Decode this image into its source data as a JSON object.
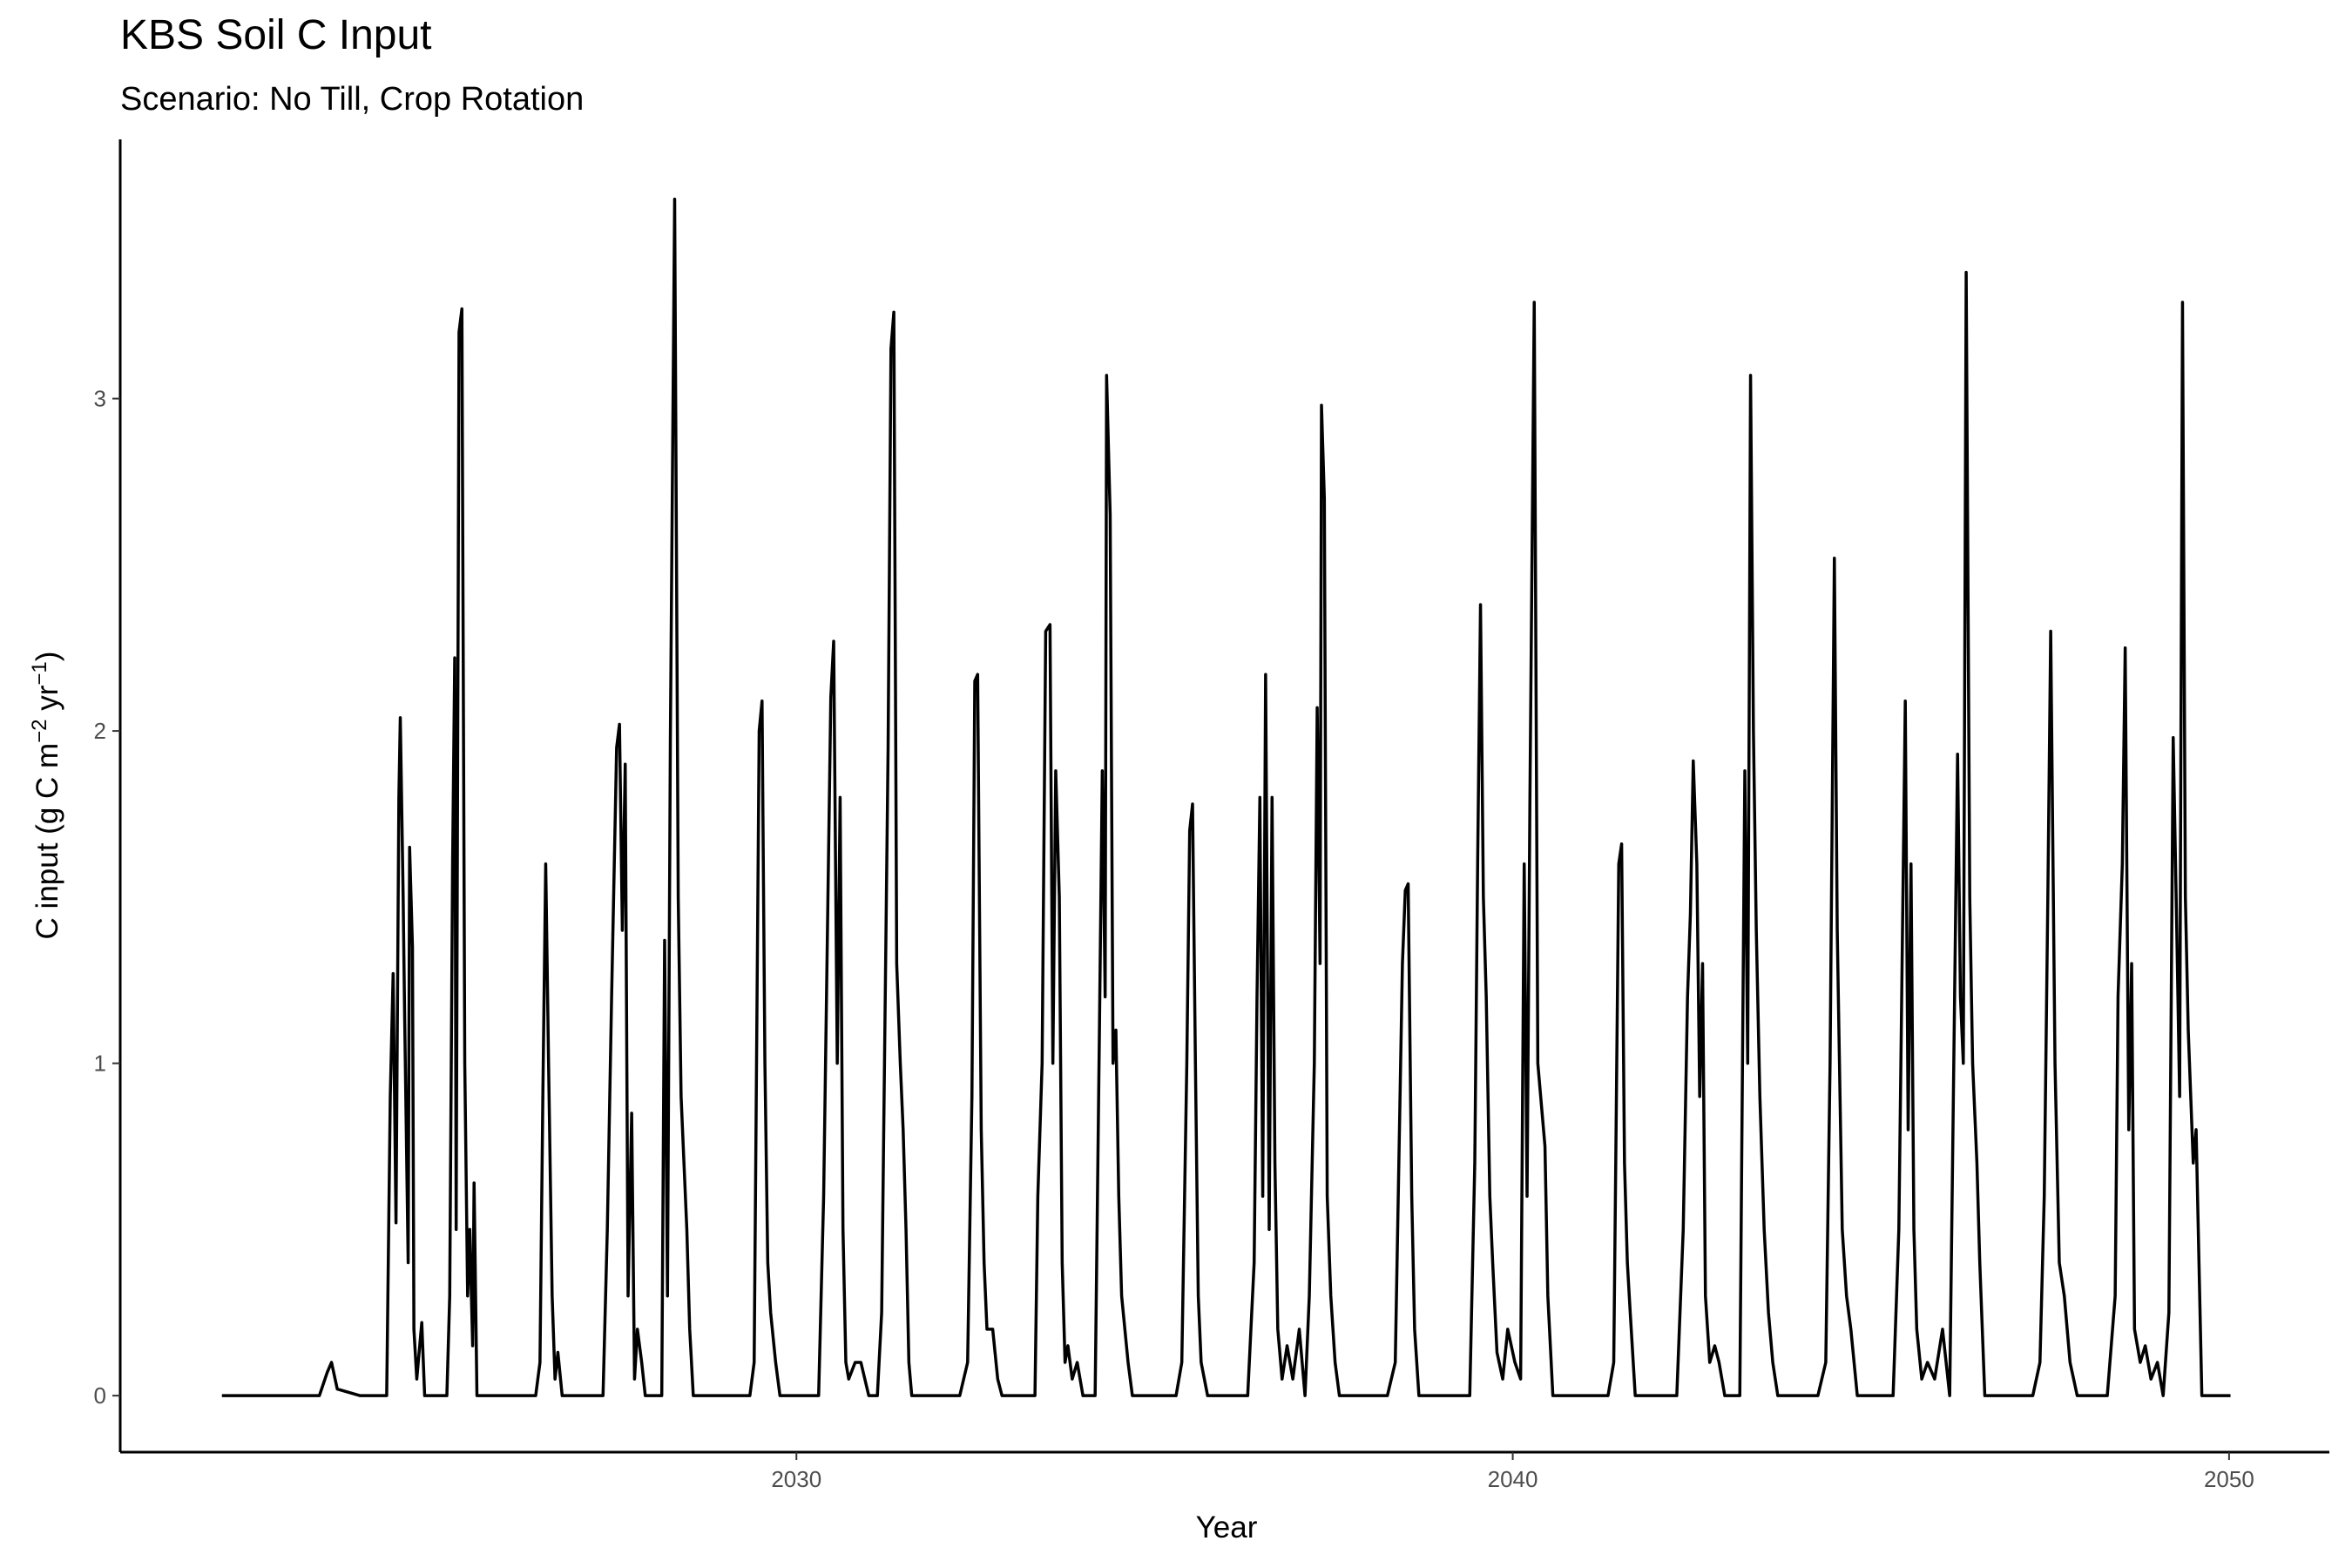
{
  "chart_data": {
    "type": "line",
    "title": "KBS Soil C Input",
    "subtitle": "Scenario: No Till, Crop Rotation",
    "x_label": "Year",
    "y_label": [
      "C input (g C m",
      "−2",
      " yr",
      "−1",
      ")"
    ],
    "color": "#000000",
    "grid": false,
    "xlim": [
      2020.56,
      2051.4
    ],
    "ylim": [
      -0.17,
      3.78
    ],
    "xticks": [
      2030,
      2040,
      2050
    ],
    "yticks": [
      0,
      1,
      2,
      3
    ],
    "x": [
      2021.98,
      2023.34,
      2023.45,
      2023.51,
      2023.59,
      2023.91,
      2024.28,
      2024.33,
      2024.37,
      2024.41,
      2024.45,
      2024.47,
      2024.51,
      2024.53,
      2024.58,
      2024.6,
      2024.64,
      2024.66,
      2024.7,
      2024.77,
      2024.81,
      2025.12,
      2025.16,
      2025.2,
      2025.23,
      2025.25,
      2025.29,
      2025.33,
      2025.37,
      2025.41,
      2025.44,
      2025.48,
      2025.5,
      2025.54,
      2026.36,
      2026.42,
      2026.46,
      2026.5,
      2026.54,
      2026.59,
      2026.63,
      2026.67,
      2026.73,
      2027.3,
      2027.36,
      2027.42,
      2027.49,
      2027.53,
      2027.57,
      2027.61,
      2027.65,
      2027.7,
      2027.74,
      2027.78,
      2027.84,
      2027.89,
      2028.12,
      2028.16,
      2028.2,
      2028.24,
      2028.3,
      2028.35,
      2028.39,
      2028.43,
      2028.47,
      2028.51,
      2028.56,
      2029.35,
      2029.41,
      2029.48,
      2029.52,
      2029.56,
      2029.6,
      2029.64,
      2029.71,
      2029.77,
      2030.31,
      2030.38,
      2030.44,
      2030.48,
      2030.52,
      2030.57,
      2030.61,
      2030.65,
      2030.69,
      2030.73,
      2030.82,
      2030.9,
      2031.01,
      2031.13,
      2031.19,
      2031.24,
      2031.28,
      2031.32,
      2031.36,
      2031.4,
      2031.45,
      2031.49,
      2031.53,
      2031.57,
      2031.61,
      2032.28,
      2032.39,
      2032.45,
      2032.49,
      2032.53,
      2032.58,
      2032.62,
      2032.66,
      2032.74,
      2032.81,
      2032.87,
      2033.33,
      2033.37,
      2033.43,
      2033.48,
      2033.54,
      2033.58,
      2033.62,
      2033.67,
      2033.71,
      2033.75,
      2033.79,
      2033.85,
      2033.92,
      2034.0,
      2034.17,
      2034.23,
      2034.27,
      2034.31,
      2034.33,
      2034.38,
      2034.42,
      2034.46,
      2034.5,
      2034.54,
      2034.63,
      2034.69,
      2035.3,
      2035.38,
      2035.45,
      2035.49,
      2035.53,
      2035.57,
      2035.61,
      2035.65,
      2035.74,
      2036.3,
      2036.39,
      2036.43,
      2036.47,
      2036.51,
      2036.55,
      2036.6,
      2036.64,
      2036.68,
      2036.72,
      2036.78,
      2036.85,
      2036.93,
      2037.02,
      2037.1,
      2037.16,
      2037.23,
      2037.27,
      2037.31,
      2037.33,
      2037.37,
      2037.41,
      2037.46,
      2037.52,
      2037.58,
      2038.25,
      2038.36,
      2038.46,
      2038.5,
      2038.54,
      2038.59,
      2038.63,
      2038.69,
      2039.4,
      2039.47,
      2039.51,
      2039.55,
      2039.59,
      2039.63,
      2039.68,
      2039.72,
      2039.78,
      2039.86,
      2039.93,
      2040.03,
      2040.11,
      2040.16,
      2040.2,
      2040.24,
      2040.3,
      2040.35,
      2040.39,
      2040.45,
      2040.49,
      2040.56,
      2041.33,
      2041.41,
      2041.48,
      2041.52,
      2041.56,
      2041.6,
      2041.64,
      2041.71,
      2042.29,
      2042.38,
      2042.44,
      2042.48,
      2042.52,
      2042.57,
      2042.61,
      2042.65,
      2042.69,
      2042.75,
      2042.82,
      2042.88,
      2042.96,
      2043.17,
      2043.24,
      2043.28,
      2043.32,
      2043.36,
      2043.4,
      2043.45,
      2043.51,
      2043.57,
      2043.63,
      2043.7,
      2044.26,
      2044.37,
      2044.43,
      2044.49,
      2044.53,
      2044.6,
      2044.66,
      2044.72,
      2044.81,
      2045.31,
      2045.39,
      2045.43,
      2045.48,
      2045.52,
      2045.56,
      2045.6,
      2045.64,
      2045.71,
      2045.79,
      2045.89,
      2046.0,
      2046.1,
      2046.21,
      2046.25,
      2046.29,
      2046.33,
      2046.38,
      2046.42,
      2046.48,
      2046.52,
      2046.59,
      2047.26,
      2047.36,
      2047.42,
      2047.47,
      2047.51,
      2047.57,
      2047.63,
      2047.7,
      2047.78,
      2047.88,
      2048.3,
      2048.41,
      2048.45,
      2048.51,
      2048.55,
      2048.6,
      2048.64,
      2048.68,
      2048.76,
      2048.83,
      2048.91,
      2049.0,
      2049.08,
      2049.16,
      2049.22,
      2049.27,
      2049.31,
      2049.35,
      2049.39,
      2049.43,
      2049.5,
      2049.54,
      2049.58,
      2049.62,
      2050.02
    ],
    "values": [
      0,
      0,
      0.07,
      0.1,
      0.02,
      0,
      0,
      0.9,
      1.27,
      0.52,
      1.8,
      2.04,
      1.5,
      1.15,
      0.4,
      1.65,
      1.35,
      0.2,
      0.05,
      0.22,
      0,
      0,
      0.3,
      1.6,
      2.22,
      0.5,
      3.2,
      3.27,
      1.0,
      0.3,
      0.5,
      0.15,
      0.64,
      0,
      0,
      0.1,
      0.9,
      1.6,
      1.0,
      0.3,
      0.05,
      0.13,
      0,
      0,
      0.5,
      1.2,
      1.95,
      2.02,
      1.4,
      1.9,
      0.3,
      0.85,
      0.05,
      0.2,
      0.1,
      0,
      0,
      1.37,
      0.3,
      1.97,
      3.6,
      1.5,
      0.9,
      0.7,
      0.5,
      0.2,
      0,
      0,
      0.1,
      2.0,
      2.09,
      1.0,
      0.4,
      0.25,
      0.1,
      0,
      0,
      0.6,
      1.5,
      2.1,
      2.27,
      1.0,
      1.8,
      0.5,
      0.1,
      0.05,
      0.1,
      0.1,
      0,
      0,
      0.25,
      1.2,
      1.95,
      3.15,
      3.26,
      1.3,
      1.0,
      0.8,
      0.5,
      0.1,
      0,
      0,
      0.1,
      0.9,
      2.15,
      2.17,
      0.8,
      0.4,
      0.2,
      0.2,
      0.05,
      0,
      0,
      0.6,
      1.0,
      2.3,
      2.32,
      1.0,
      1.88,
      1.5,
      0.4,
      0.1,
      0.15,
      0.05,
      0.1,
      0,
      0,
      1.1,
      1.88,
      1.2,
      3.07,
      2.65,
      1.0,
      1.1,
      0.6,
      0.3,
      0.1,
      0,
      0,
      0.1,
      1.0,
      1.7,
      1.78,
      1.0,
      0.3,
      0.1,
      0,
      0,
      0.4,
      1.2,
      1.8,
      0.6,
      2.17,
      0.5,
      1.8,
      0.7,
      0.2,
      0.05,
      0.15,
      0.05,
      0.2,
      0,
      0.3,
      1.0,
      2.07,
      1.3,
      2.98,
      2.7,
      0.6,
      0.3,
      0.1,
      0,
      0,
      0.1,
      1.3,
      1.52,
      1.54,
      0.6,
      0.2,
      0,
      0,
      0.7,
      1.6,
      2.38,
      1.5,
      1.2,
      0.6,
      0.4,
      0.13,
      0.05,
      0.2,
      0.1,
      0.05,
      1.6,
      0.6,
      1.8,
      3.29,
      1.0,
      0.9,
      0.75,
      0.3,
      0,
      0,
      0.1,
      1.6,
      1.66,
      0.7,
      0.4,
      0.25,
      0,
      0,
      0.5,
      1.2,
      1.45,
      1.91,
      1.6,
      0.9,
      1.3,
      0.3,
      0.1,
      0.15,
      0.1,
      0,
      0,
      1.88,
      1.0,
      3.07,
      2.0,
      1.4,
      0.9,
      0.5,
      0.25,
      0.1,
      0,
      0,
      0.1,
      1.0,
      2.52,
      1.4,
      0.5,
      0.3,
      0.2,
      0,
      0,
      0.5,
      1.2,
      2.09,
      0.8,
      1.6,
      0.5,
      0.2,
      0.05,
      0.1,
      0.05,
      0.2,
      0,
      1.93,
      1.2,
      1.0,
      3.38,
      1.5,
      1.0,
      0.7,
      0.4,
      0,
      0,
      0.1,
      0.6,
      1.5,
      2.3,
      1.0,
      0.4,
      0.3,
      0.1,
      0,
      0,
      0.3,
      1.2,
      1.6,
      2.25,
      0.8,
      1.3,
      0.2,
      0.1,
      0.15,
      0.05,
      0.1,
      0,
      0.25,
      1.98,
      1.4,
      0.9,
      3.29,
      1.5,
      1.1,
      0.7,
      0.8,
      0.4,
      0,
      0
    ]
  }
}
